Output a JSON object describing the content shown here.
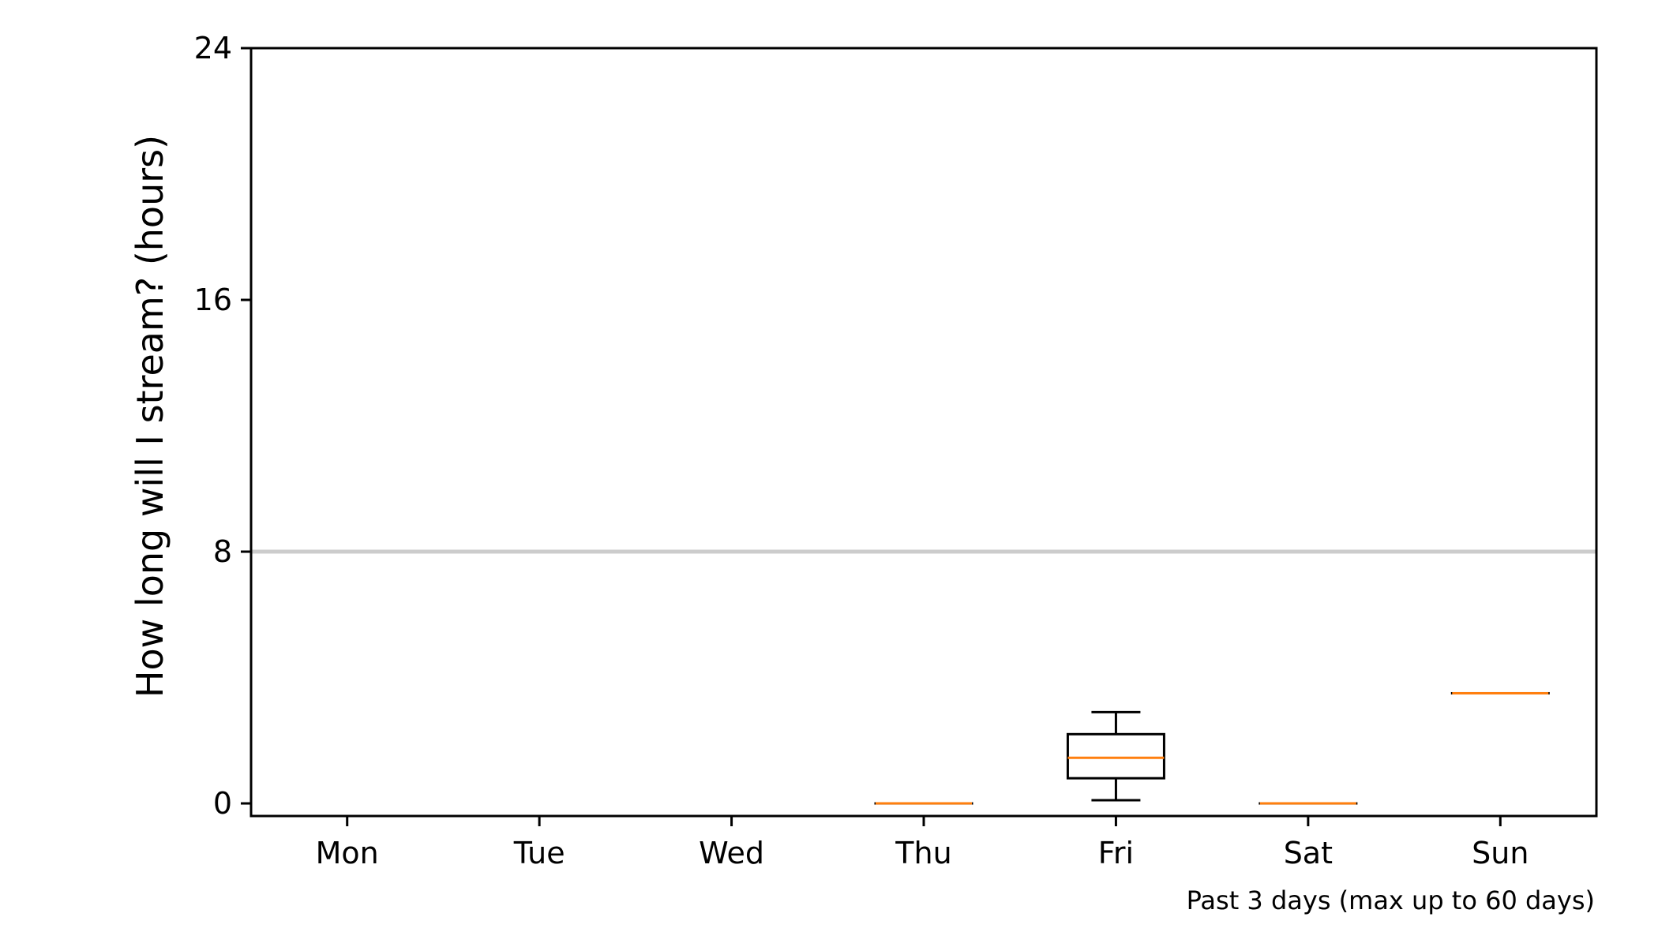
{
  "chart_data": {
    "type": "box",
    "title": "",
    "xlabel": "",
    "ylabel": "How long will I stream? (hours)",
    "footnote": "Past 3 days (max up to 60 days)",
    "categories": [
      "Mon",
      "Tue",
      "Wed",
      "Thu",
      "Fri",
      "Sat",
      "Sun"
    ],
    "yticks": [
      0,
      8,
      16,
      24
    ],
    "ytick_labels": [
      "0",
      "8",
      "16",
      "24"
    ],
    "ylim": [
      -0.4,
      24
    ],
    "grid": false,
    "reference_line": {
      "y": 8,
      "color": "#cccccc"
    },
    "boxes": [
      {
        "category": "Thu",
        "whisker_low": 0.0,
        "q1": 0.0,
        "median": 0.0,
        "q3": 0.0,
        "whisker_high": 0.0
      },
      {
        "category": "Fri",
        "whisker_low": 0.1,
        "q1": 0.8,
        "median": 1.45,
        "q3": 2.2,
        "whisker_high": 2.9
      },
      {
        "category": "Sat",
        "whisker_low": 0.0,
        "q1": 0.0,
        "median": 0.0,
        "q3": 0.0,
        "whisker_high": 0.0
      },
      {
        "category": "Sun",
        "whisker_low": 3.5,
        "q1": 3.5,
        "median": 3.5,
        "q3": 3.5,
        "whisker_high": 3.5
      }
    ],
    "colors": {
      "box": "#000000",
      "median": "#ff7f0e",
      "reference_line": "#cccccc",
      "axis": "#000000"
    }
  }
}
